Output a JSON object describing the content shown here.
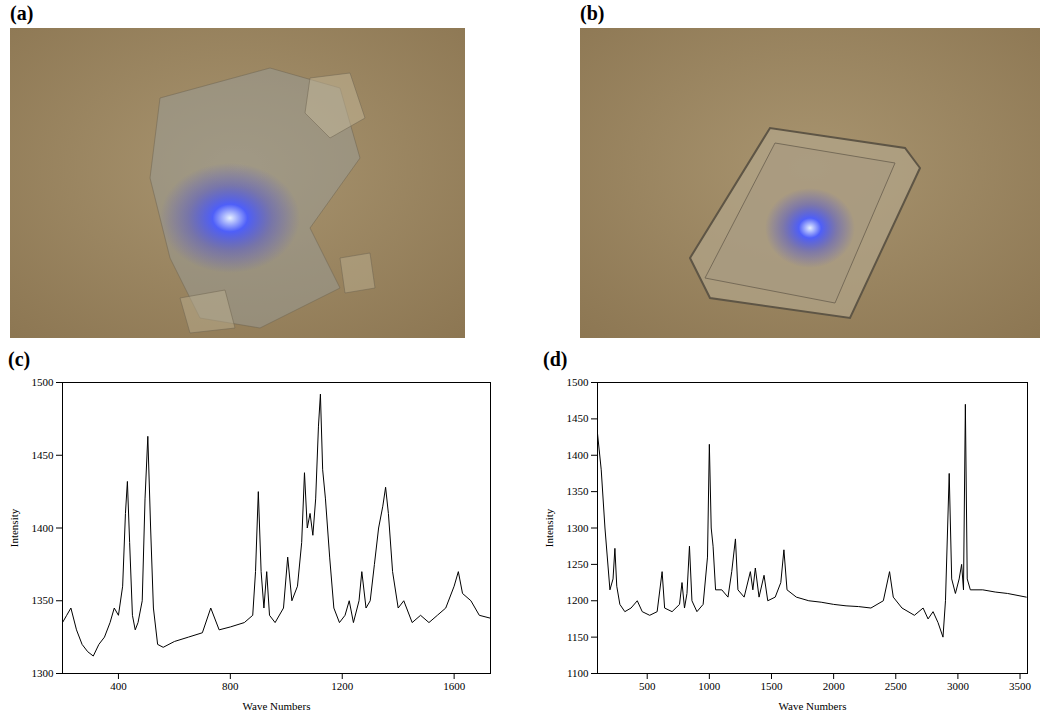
{
  "images": [
    {
      "type": "image",
      "label": "(a)"
    },
    {
      "type": "image",
      "label": "(b)"
    }
  ],
  "chart_data": [
    {
      "type": "line",
      "title": "(c)",
      "x_label": "Wave Numbers",
      "y_label": "Intensity",
      "color": "#000000",
      "x": [
        200,
        215,
        230,
        250,
        270,
        290,
        310,
        330,
        350,
        370,
        385,
        400,
        415,
        425,
        432,
        440,
        450,
        460,
        470,
        485,
        495,
        505,
        515,
        525,
        540,
        560,
        600,
        650,
        700,
        730,
        760,
        800,
        850,
        880,
        890,
        900,
        910,
        920,
        930,
        940,
        960,
        990,
        1005,
        1020,
        1040,
        1055,
        1065,
        1075,
        1085,
        1095,
        1105,
        1115,
        1122,
        1130,
        1140,
        1155,
        1170,
        1190,
        1210,
        1225,
        1240,
        1260,
        1270,
        1285,
        1300,
        1315,
        1330,
        1345,
        1355,
        1365,
        1380,
        1400,
        1420,
        1450,
        1480,
        1510,
        1540,
        1570,
        1600,
        1615,
        1630,
        1660,
        1690,
        1730
      ],
      "values": [
        1335,
        1340,
        1345,
        1330,
        1320,
        1315,
        1312,
        1320,
        1325,
        1335,
        1345,
        1340,
        1360,
        1410,
        1432,
        1390,
        1340,
        1330,
        1335,
        1350,
        1420,
        1463,
        1400,
        1345,
        1320,
        1318,
        1322,
        1325,
        1328,
        1345,
        1330,
        1332,
        1335,
        1340,
        1370,
        1425,
        1370,
        1345,
        1370,
        1340,
        1335,
        1345,
        1380,
        1350,
        1360,
        1390,
        1438,
        1400,
        1410,
        1395,
        1420,
        1470,
        1492,
        1440,
        1420,
        1380,
        1345,
        1335,
        1340,
        1350,
        1335,
        1350,
        1370,
        1345,
        1350,
        1375,
        1400,
        1415,
        1428,
        1410,
        1370,
        1345,
        1350,
        1335,
        1340,
        1335,
        1340,
        1345,
        1360,
        1370,
        1355,
        1350,
        1340,
        1338
      ],
      "xlim": [
        200,
        1730
      ],
      "xticks": [
        400,
        800,
        1200,
        1600
      ],
      "ylim": [
        1300,
        1500
      ],
      "yticks": [
        1300,
        1350,
        1400,
        1450,
        1500
      ]
    },
    {
      "type": "line",
      "title": "(d)",
      "x_label": "Wave Numbers",
      "y_label": "Intensity",
      "color": "#000000",
      "x": [
        100,
        130,
        160,
        200,
        225,
        240,
        255,
        280,
        320,
        370,
        420,
        460,
        520,
        580,
        620,
        640,
        700,
        760,
        780,
        800,
        820,
        840,
        860,
        900,
        950,
        985,
        1000,
        1015,
        1030,
        1050,
        1100,
        1150,
        1180,
        1210,
        1230,
        1280,
        1330,
        1350,
        1370,
        1400,
        1440,
        1470,
        1530,
        1575,
        1600,
        1625,
        1700,
        1800,
        1900,
        2000,
        2100,
        2200,
        2300,
        2400,
        2450,
        2480,
        2550,
        2650,
        2720,
        2760,
        2800,
        2840,
        2880,
        2900,
        2930,
        2950,
        2980,
        3010,
        3030,
        3045,
        3060,
        3075,
        3100,
        3200,
        3300,
        3400,
        3550
      ],
      "values": [
        1430,
        1380,
        1300,
        1215,
        1230,
        1272,
        1220,
        1195,
        1185,
        1190,
        1200,
        1185,
        1180,
        1185,
        1240,
        1190,
        1185,
        1195,
        1225,
        1190,
        1210,
        1275,
        1200,
        1185,
        1195,
        1260,
        1415,
        1300,
        1275,
        1215,
        1215,
        1205,
        1240,
        1285,
        1215,
        1205,
        1240,
        1215,
        1245,
        1205,
        1235,
        1200,
        1205,
        1225,
        1270,
        1215,
        1205,
        1200,
        1198,
        1195,
        1193,
        1192,
        1190,
        1200,
        1240,
        1205,
        1190,
        1180,
        1190,
        1175,
        1185,
        1170,
        1150,
        1200,
        1375,
        1230,
        1210,
        1230,
        1250,
        1215,
        1470,
        1230,
        1215,
        1215,
        1212,
        1210,
        1205
      ],
      "xlim": [
        100,
        3560
      ],
      "xticks": [
        500,
        1000,
        1500,
        2000,
        2500,
        3000,
        3500
      ],
      "ylim": [
        1100,
        1500
      ],
      "yticks": [
        1100,
        1150,
        1200,
        1250,
        1300,
        1350,
        1400,
        1450,
        1500
      ]
    }
  ]
}
